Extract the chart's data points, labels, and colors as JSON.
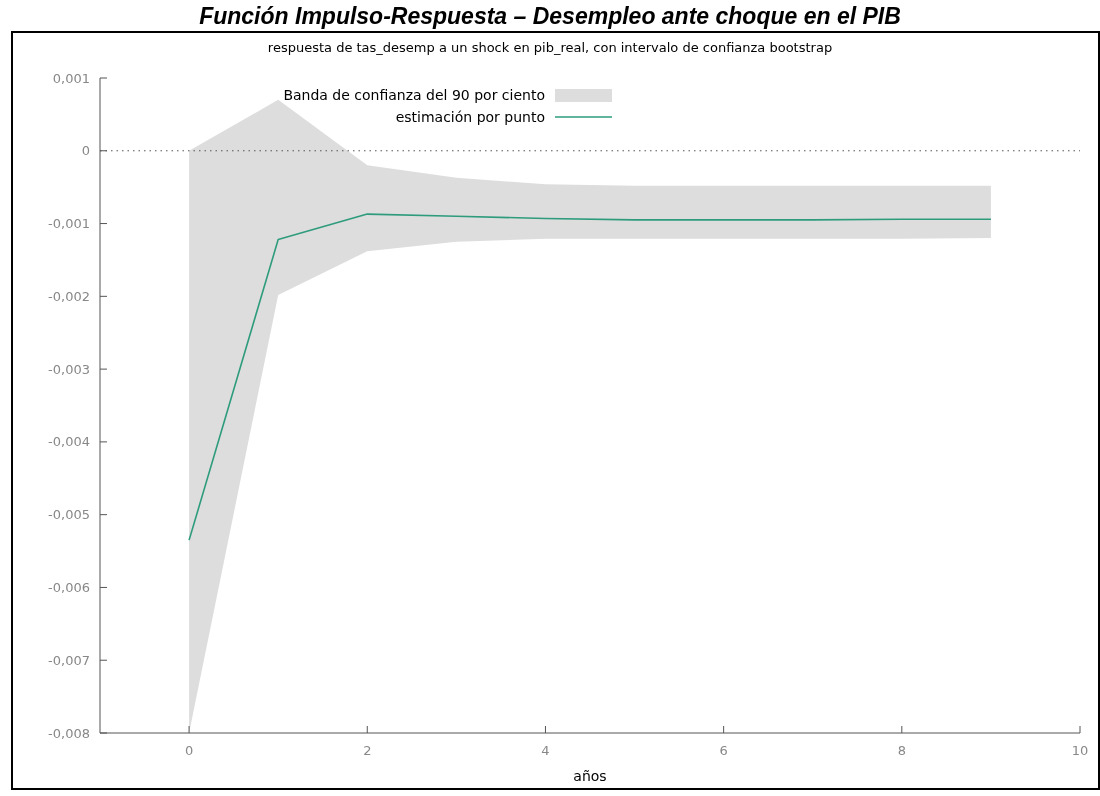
{
  "chart_data": {
    "type": "line",
    "title": "Función Impulso-Respuesta – Desempleo ante choque en el PIB",
    "subtitle": "respuesta de tas_desemp a un shock en pib_real, con intervalo de confianza bootstrap",
    "xlabel": "años",
    "x": [
      0,
      1,
      2,
      3,
      4,
      5,
      6,
      7,
      8,
      9
    ],
    "series": [
      {
        "name": "estimación por punto",
        "color": "#2e9c7c",
        "values": [
          -0.00535,
          -0.00122,
          -0.00087,
          -0.0009,
          -0.00093,
          -0.00095,
          -0.00095,
          -0.00095,
          -0.00094,
          -0.00094
        ],
        "lower": [
          -0.008,
          -0.00198,
          -0.00138,
          -0.00125,
          -0.00121,
          -0.00121,
          -0.00121,
          -0.00121,
          -0.00121,
          -0.0012
        ],
        "upper": [
          0.0,
          0.0007,
          -0.0002,
          -0.00037,
          -0.00046,
          -0.00048,
          -0.00048,
          -0.00048,
          -0.00048,
          -0.00048
        ]
      }
    ],
    "xlim": [
      -1,
      10
    ],
    "xticks": [
      0,
      2,
      4,
      6,
      8,
      10
    ],
    "ylim": [
      -0.008,
      0.001
    ],
    "yticks": [
      {
        "value": 0.001,
        "label": "0,001"
      },
      0,
      {
        "value": -0.001,
        "label": "-0,001"
      },
      {
        "value": -0.002,
        "label": "-0,002"
      },
      {
        "value": -0.003,
        "label": "-0,003"
      },
      {
        "value": -0.004,
        "label": "-0,004"
      },
      {
        "value": -0.005,
        "label": "-0,005"
      },
      {
        "value": -0.006,
        "label": "-0,006"
      },
      {
        "value": -0.007,
        "label": "-0,007"
      },
      {
        "value": -0.008,
        "label": "-0,008"
      }
    ],
    "ref_lines": [
      {
        "axis": "y",
        "value": 0,
        "color": "#555555",
        "line_style": "dotted"
      }
    ],
    "annotations": [
      "Banda de confianza del 90 por ciento"
    ],
    "grid": false,
    "legend": "top",
    "marker": "none",
    "line_style": "solid"
  }
}
